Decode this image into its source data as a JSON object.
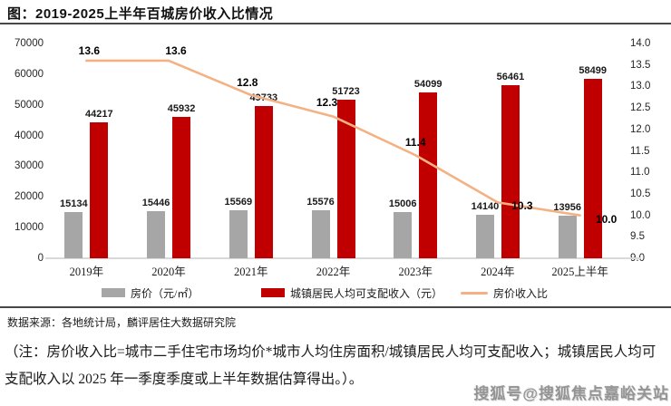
{
  "header": {
    "title": "图：2019-2025上半年百城房价收入比情况"
  },
  "chart_data": {
    "type": "bar",
    "title": "图：2019-2025上半年百城房价收入比情况",
    "categories": [
      "2019年",
      "2020年",
      "2021年",
      "2022年",
      "2023年",
      "2024年",
      "2025上半年"
    ],
    "series": [
      {
        "name": "房价（元/㎡）",
        "type": "bar",
        "axis": "left",
        "color": "#A6A6A6",
        "values": [
          15134,
          15446,
          15569,
          15576,
          15006,
          14140,
          13956
        ]
      },
      {
        "name": "城镇居民人均可支配收入（元）",
        "type": "bar",
        "axis": "left",
        "color": "#C00000",
        "values": [
          44217,
          45932,
          49733,
          51723,
          54099,
          56461,
          58499
        ]
      },
      {
        "name": "房价收入比",
        "type": "line",
        "axis": "right",
        "color": "#F4B183",
        "values": [
          13.6,
          13.6,
          12.8,
          12.3,
          11.4,
          10.3,
          10.0
        ]
      }
    ],
    "left_axis": {
      "min": 0,
      "max": 70000,
      "ticks": [
        "70000",
        "60000",
        "50000",
        "40000",
        "30000",
        "20000",
        "10000",
        "0"
      ]
    },
    "right_axis": {
      "min": 9.0,
      "max": 14.0,
      "ticks": [
        "14.0",
        "13.5",
        "13.0",
        "12.5",
        "12.0",
        "11.5",
        "11.0",
        "10.5",
        "10.0",
        "9.5",
        "9.0"
      ]
    },
    "grid": false,
    "legend_position": "bottom"
  },
  "legend": {
    "items": [
      {
        "label": "房价（元/㎡）",
        "swatch": "gray-rect",
        "color": "#A6A6A6"
      },
      {
        "label": "城镇居民人均可支配收入（元）",
        "swatch": "red-rect",
        "color": "#C00000"
      },
      {
        "label": "房价收入比",
        "swatch": "orange-line",
        "color": "#F4B183"
      }
    ]
  },
  "source": {
    "text": "数据来源：各地统计局，麟评居住大数据研究院"
  },
  "note": {
    "line1": "（注：房价收入比=城市二手住宅市场均价*城市人均住房面积/城镇居民人均可支配收入；城镇居民人均可",
    "line2": "支配收入以 2025 年一季度季度或上半年数据估算得出。）。"
  },
  "watermark": {
    "text": "搜狐号@搜狐焦点嘉峪关站"
  },
  "colors": {
    "bar_gray": "#A6A6A6",
    "bar_red": "#C00000",
    "line_orange": "#F4B183",
    "axis_line": "#D9D9D9",
    "rule": "#474747"
  }
}
